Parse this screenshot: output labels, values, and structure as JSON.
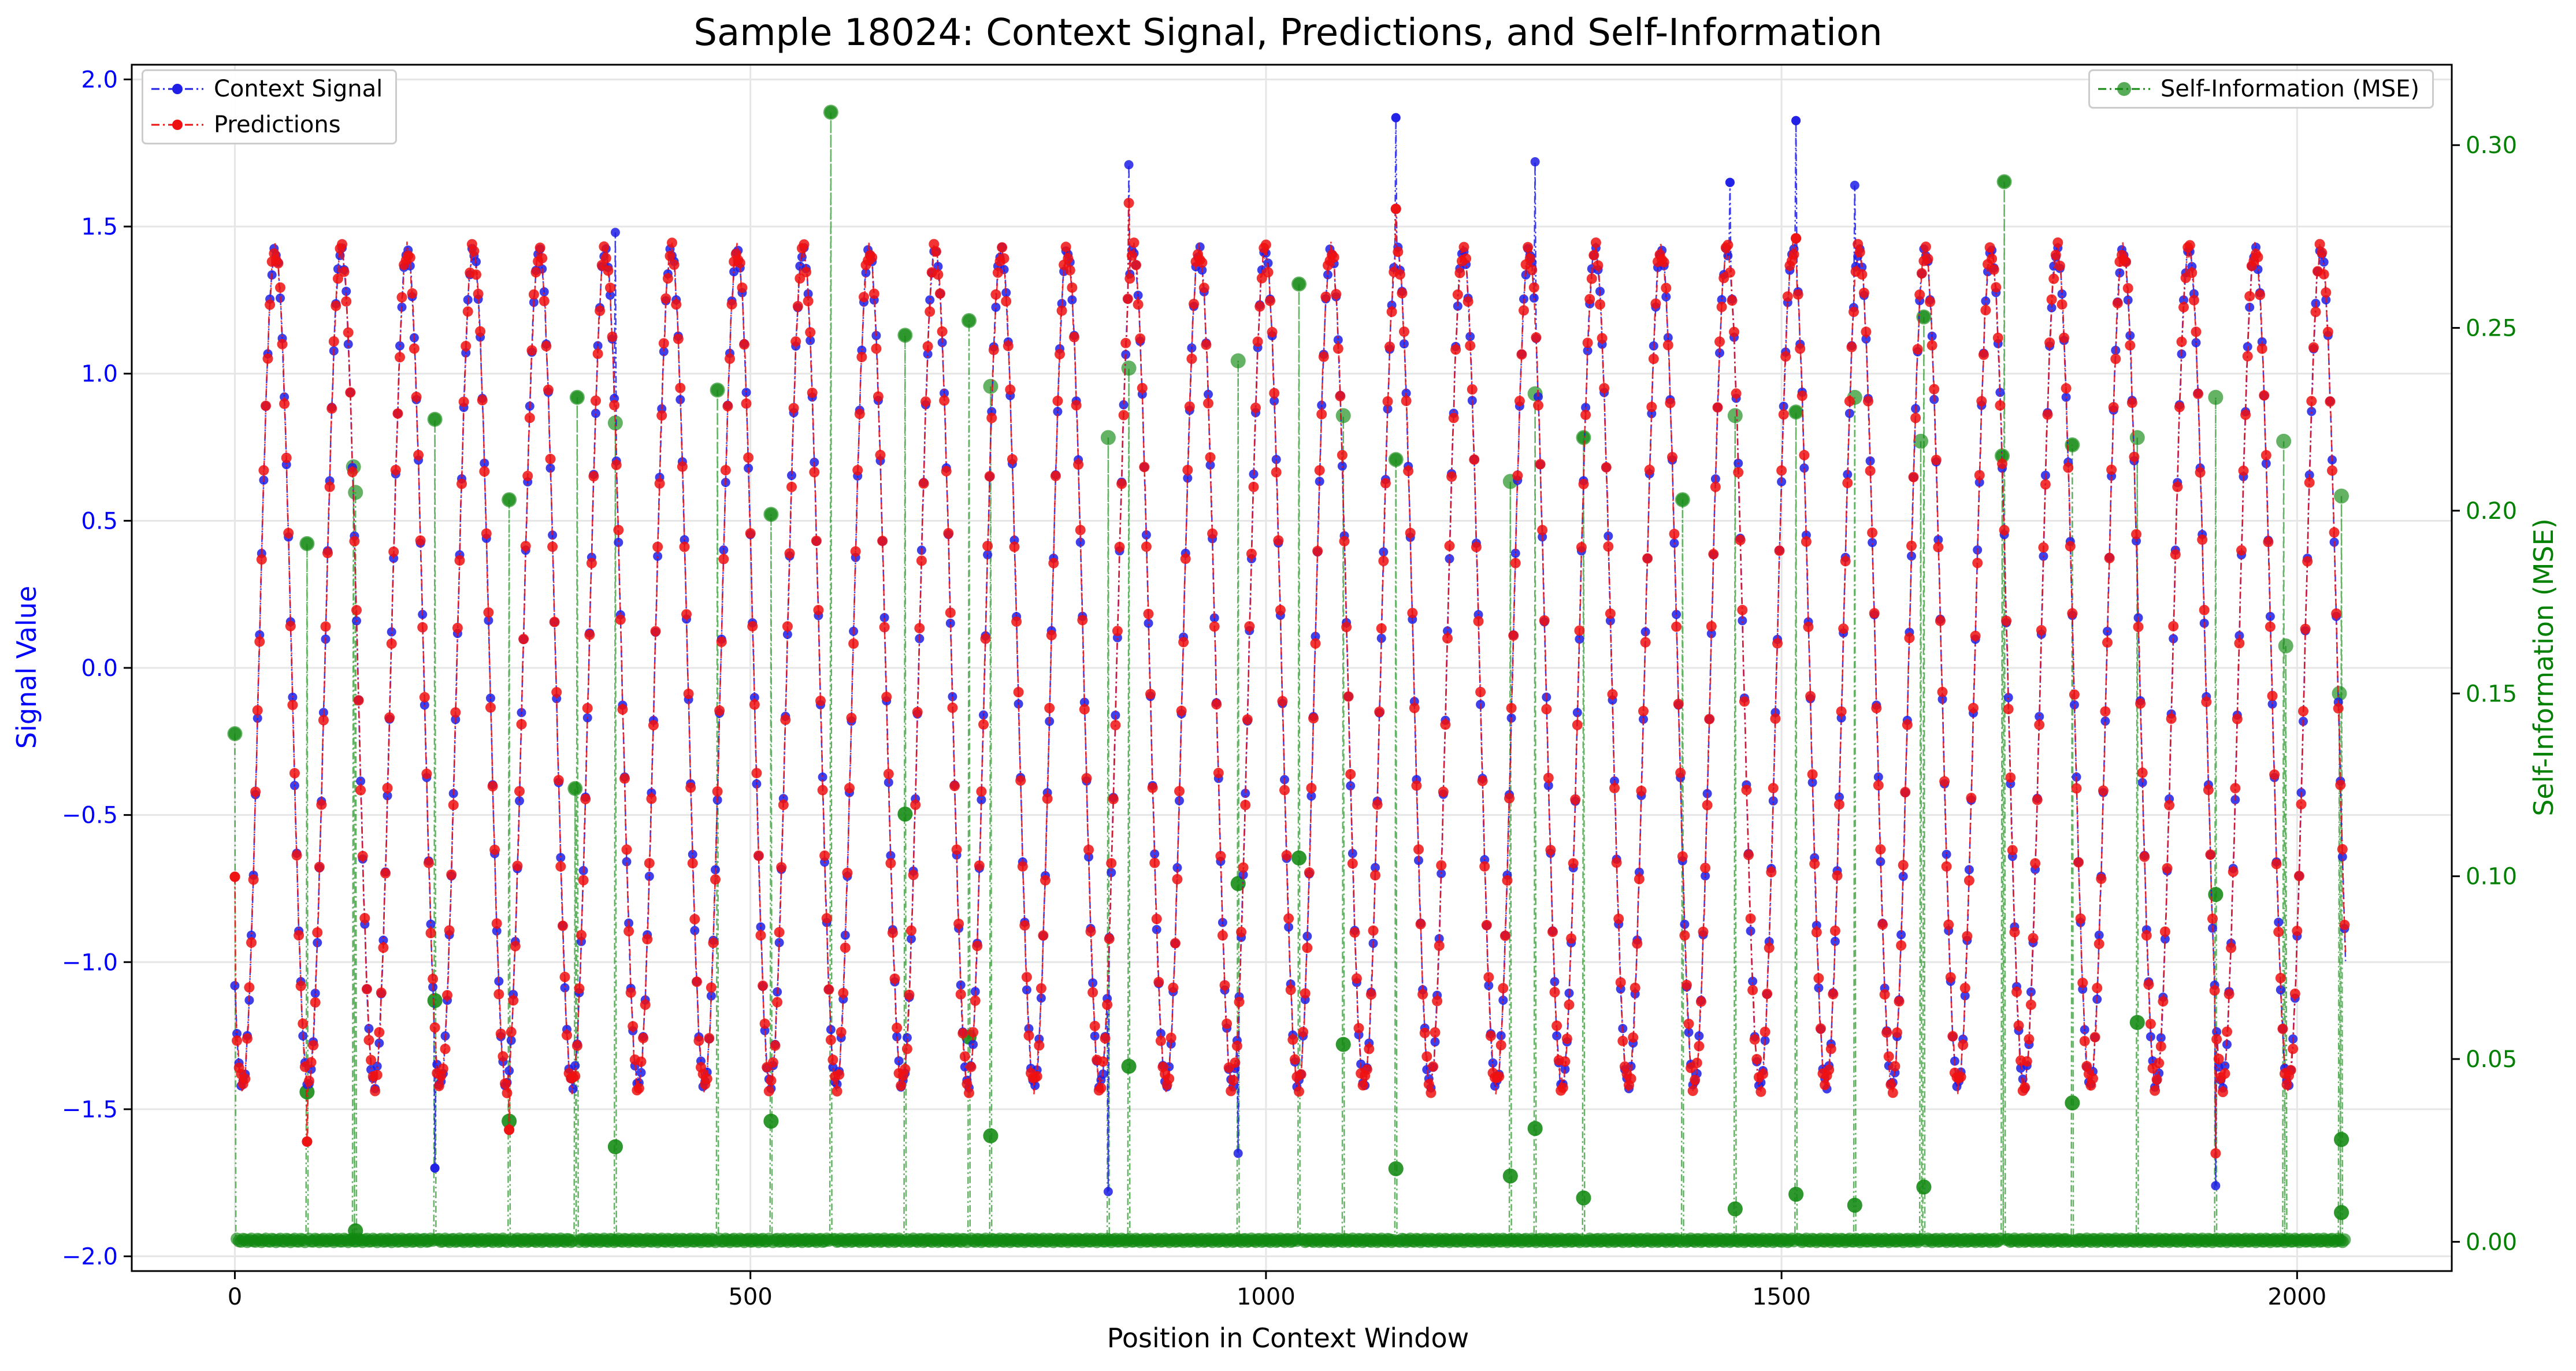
{
  "chart_data": {
    "type": "line",
    "title": "Sample 18024: Context Signal, Predictions, and Self-Information",
    "xlabel": "Position in Context Window",
    "ylabel_left": "Signal Value",
    "ylabel_right": "Self-Information (MSE)",
    "xlim": [
      -100,
      2150
    ],
    "ylim_left": [
      -2.05,
      2.05
    ],
    "ylim_right": [
      -0.008,
      0.322
    ],
    "x_ticks": [
      0,
      500,
      1000,
      1500,
      2000
    ],
    "x_tick_labels": [
      "0",
      "500",
      "1000",
      "1500",
      "2000"
    ],
    "y_left_ticks": [
      -2.0,
      -1.5,
      -1.0,
      -0.5,
      0.0,
      0.5,
      1.0,
      1.5,
      2.0
    ],
    "y_left_tick_labels": [
      "−2.0",
      "−1.5",
      "−1.0",
      "−0.5",
      "0.0",
      "0.5",
      "1.0",
      "1.5",
      "2.0"
    ],
    "y_right_ticks": [
      0.0,
      0.05,
      0.1,
      0.15,
      0.2,
      0.25,
      0.3
    ],
    "y_right_tick_labels": [
      "0.00",
      "0.05",
      "0.10",
      "0.15",
      "0.20",
      "0.25",
      "0.30"
    ],
    "grid": true,
    "legend_left": {
      "placement": "upper-left",
      "entries": [
        "Context Signal",
        "Predictions"
      ]
    },
    "legend_right": {
      "placement": "upper-right",
      "entries": [
        "Self-Information (MSE)"
      ]
    },
    "signal_model": {
      "num_points": 2048,
      "period": 64,
      "amplitude": 1.42,
      "phase_start_value": -1.08
    },
    "series": [
      {
        "name": "Context Signal",
        "color": "#1f1fe6",
        "axis": "left",
        "style": "dash-dot with circle markers",
        "spikes": [
          {
            "x": 369,
            "y": 1.48
          },
          {
            "x": 867,
            "y": 1.71
          },
          {
            "x": 1126,
            "y": 1.87
          },
          {
            "x": 1261,
            "y": 1.72
          },
          {
            "x": 1450,
            "y": 1.65
          },
          {
            "x": 1514,
            "y": 1.86
          },
          {
            "x": 1571,
            "y": 1.64
          },
          {
            "x": 973,
            "y": -1.65
          },
          {
            "x": 194,
            "y": -1.7
          },
          {
            "x": 847,
            "y": -1.78
          },
          {
            "x": 1921,
            "y": -1.76
          }
        ]
      },
      {
        "name": "Predictions",
        "color": "#ee1111",
        "axis": "left",
        "style": "dash-dot with circle markers",
        "spikes": [
          {
            "x": 0,
            "y": -0.71
          },
          {
            "x": 867,
            "y": 1.58
          },
          {
            "x": 1126,
            "y": 1.56
          },
          {
            "x": 1514,
            "y": 1.46
          },
          {
            "x": 70,
            "y": -1.61
          },
          {
            "x": 1921,
            "y": -1.65
          },
          {
            "x": 266,
            "y": -1.57
          }
        ]
      },
      {
        "name": "Self-Information (MSE)",
        "color": "#118811",
        "axis": "right",
        "style": "dash-dot with circle markers",
        "baseline": 0.0,
        "spikes": [
          {
            "x": 0,
            "y": 0.139
          },
          {
            "x": 70,
            "y": 0.191
          },
          {
            "x": 115,
            "y": 0.212
          },
          {
            "x": 117,
            "y": 0.205
          },
          {
            "x": 194,
            "y": 0.225
          },
          {
            "x": 266,
            "y": 0.203
          },
          {
            "x": 332,
            "y": 0.231
          },
          {
            "x": 369,
            "y": 0.224
          },
          {
            "x": 468,
            "y": 0.233
          },
          {
            "x": 520,
            "y": 0.199
          },
          {
            "x": 578,
            "y": 0.309
          },
          {
            "x": 650,
            "y": 0.248
          },
          {
            "x": 712,
            "y": 0.252
          },
          {
            "x": 733,
            "y": 0.234
          },
          {
            "x": 847,
            "y": 0.22
          },
          {
            "x": 867,
            "y": 0.239
          },
          {
            "x": 973,
            "y": 0.241
          },
          {
            "x": 1032,
            "y": 0.262
          },
          {
            "x": 1075,
            "y": 0.226
          },
          {
            "x": 1126,
            "y": 0.214
          },
          {
            "x": 1237,
            "y": 0.208
          },
          {
            "x": 1261,
            "y": 0.232
          },
          {
            "x": 1308,
            "y": 0.22
          },
          {
            "x": 1404,
            "y": 0.203
          },
          {
            "x": 1455,
            "y": 0.226
          },
          {
            "x": 1514,
            "y": 0.227
          },
          {
            "x": 1571,
            "y": 0.231
          },
          {
            "x": 1635,
            "y": 0.219
          },
          {
            "x": 1638,
            "y": 0.253
          },
          {
            "x": 1714,
            "y": 0.215
          },
          {
            "x": 1716,
            "y": 0.29
          },
          {
            "x": 1782,
            "y": 0.218
          },
          {
            "x": 1845,
            "y": 0.22
          },
          {
            "x": 1921,
            "y": 0.231
          },
          {
            "x": 1987,
            "y": 0.219
          },
          {
            "x": 2043,
            "y": 0.204
          },
          {
            "x": 1989,
            "y": 0.163
          },
          {
            "x": 2041,
            "y": 0.15
          },
          {
            "x": 1921,
            "y": 0.095
          },
          {
            "x": 330,
            "y": 0.124
          },
          {
            "x": 650,
            "y": 0.117
          },
          {
            "x": 1032,
            "y": 0.105
          },
          {
            "x": 973,
            "y": 0.098
          },
          {
            "x": 194,
            "y": 0.066
          },
          {
            "x": 712,
            "y": 0.056
          },
          {
            "x": 1075,
            "y": 0.054
          },
          {
            "x": 867,
            "y": 0.048
          },
          {
            "x": 1845,
            "y": 0.06
          },
          {
            "x": 266,
            "y": 0.033
          },
          {
            "x": 520,
            "y": 0.033
          },
          {
            "x": 733,
            "y": 0.029
          },
          {
            "x": 1261,
            "y": 0.031
          },
          {
            "x": 1782,
            "y": 0.038
          },
          {
            "x": 2043,
            "y": 0.028
          },
          {
            "x": 369,
            "y": 0.026
          },
          {
            "x": 1126,
            "y": 0.02
          },
          {
            "x": 1237,
            "y": 0.018
          },
          {
            "x": 1308,
            "y": 0.012
          },
          {
            "x": 1455,
            "y": 0.009
          },
          {
            "x": 1514,
            "y": 0.013
          },
          {
            "x": 1571,
            "y": 0.01
          },
          {
            "x": 1638,
            "y": 0.015
          },
          {
            "x": 2043,
            "y": 0.008
          },
          {
            "x": 70,
            "y": 0.041
          },
          {
            "x": 117,
            "y": 0.003
          }
        ]
      }
    ]
  }
}
